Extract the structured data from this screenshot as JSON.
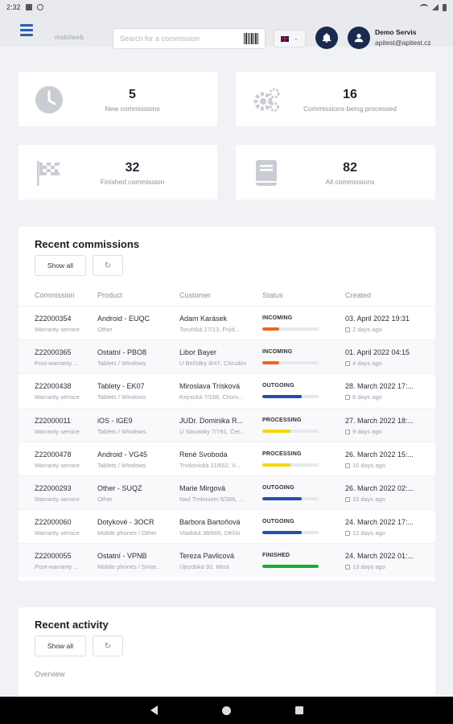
{
  "statusbar": {
    "time": "2:32"
  },
  "header": {
    "logo_text": "mobilweb",
    "search_placeholder": "Search for a commission",
    "language_flag": "uk-flag",
    "user": {
      "name": "Demo Servis",
      "email": "apitest@apitest.cz"
    }
  },
  "stats": [
    {
      "value": "5",
      "label": "New commissions",
      "icon": "clock-icon"
    },
    {
      "value": "16",
      "label": "Commissions being processed",
      "icon": "gears-icon"
    },
    {
      "value": "32",
      "label": "Finished commission",
      "icon": "flag-icon"
    },
    {
      "value": "82",
      "label": "All commissions",
      "icon": "book-icon"
    }
  ],
  "recent_commissions": {
    "title": "Recent commissions",
    "show_all_label": "Show all",
    "refresh_icon": "refresh-icon",
    "columns": [
      "Commission",
      "Product",
      "Customer",
      "Status",
      "Created"
    ],
    "rows": [
      {
        "id": "Z22000354",
        "type": "Warranty service",
        "product": "Android - EUQC",
        "category": "Other",
        "customer": "Adam Karásek",
        "address": "Torufská 27/13, Frýd...",
        "status": "INCOMING",
        "progress": 0.3,
        "color": "#f26522",
        "created": "03. April 2022 19:31",
        "ago": "2 days ago"
      },
      {
        "id": "Z22000365",
        "type": "Post-warranty ...",
        "product": "Ostatní - PBO8",
        "category": "Tablets / Windows",
        "customer": "Libor Bayer",
        "address": "U Bečídky 8/47, Chrudim",
        "status": "INCOMING",
        "progress": 0.3,
        "color": "#f26522",
        "created": "01. April 2022 04:15",
        "ago": "4 days ago"
      },
      {
        "id": "Z22000438",
        "type": "Warranty service",
        "product": "Tablety - EK07",
        "category": "Tablets / Windows",
        "customer": "Miroslava Trísková",
        "address": "Kejnická 7/166, Chom...",
        "status": "OUTGOING",
        "progress": 0.7,
        "color": "#1f4fb0",
        "created": "28. March 2022 17:...",
        "ago": "8 days ago"
      },
      {
        "id": "Z22000011",
        "type": "Warranty service",
        "product": "iOS - IGE9",
        "category": "Tablets / Windows",
        "customer": "JUDr. Dominika R...",
        "address": "U Slovanky 7/781, Čer...",
        "status": "PROCESSING",
        "progress": 0.5,
        "color": "#f2d600",
        "created": "27. March 2022 18:...",
        "ago": "9 days ago"
      },
      {
        "id": "Z22000478",
        "type": "Warranty service",
        "product": "Android - VG45",
        "category": "Tablets / Windows",
        "customer": "René Svoboda",
        "address": "Trvdonická 11/652, V...",
        "status": "PROCESSING",
        "progress": 0.5,
        "color": "#f2d600",
        "created": "26. March 2022 15:...",
        "ago": "10 days ago"
      },
      {
        "id": "Z22000293",
        "type": "Warranty service",
        "product": "Other - SUQZ",
        "category": "Other",
        "customer": "Marie Mirgová",
        "address": "Nad Trnkovem 6/366, ...",
        "status": "OUTGOING",
        "progress": 0.7,
        "color": "#1f4fb0",
        "created": "26. March 2022 02:...",
        "ago": "10 days ago"
      },
      {
        "id": "Z22000060",
        "type": "Warranty service",
        "product": "Dotykové - 3OCR",
        "category": "Mobile phones / Other",
        "customer": "Barbora Bartoňová",
        "address": "Vladská 38/666, Děčín",
        "status": "OUTGOING",
        "progress": 0.7,
        "color": "#1f4fb0",
        "created": "24. March 2022 17:...",
        "ago": "12 days ago"
      },
      {
        "id": "Z22000055",
        "type": "Post-warranty ...",
        "product": "Ostatní - VPNB",
        "category": "Mobile phones / Smar...",
        "customer": "Tereza Pavlicová",
        "address": "Újezdská 92, Most",
        "status": "FINISHED",
        "progress": 1.0,
        "color": "#16b02a",
        "created": "24. March 2022 01:...",
        "ago": "13 days ago"
      }
    ]
  },
  "recent_activity": {
    "title": "Recent activity",
    "show_all_label": "Show all",
    "overview_label": "Overview"
  }
}
